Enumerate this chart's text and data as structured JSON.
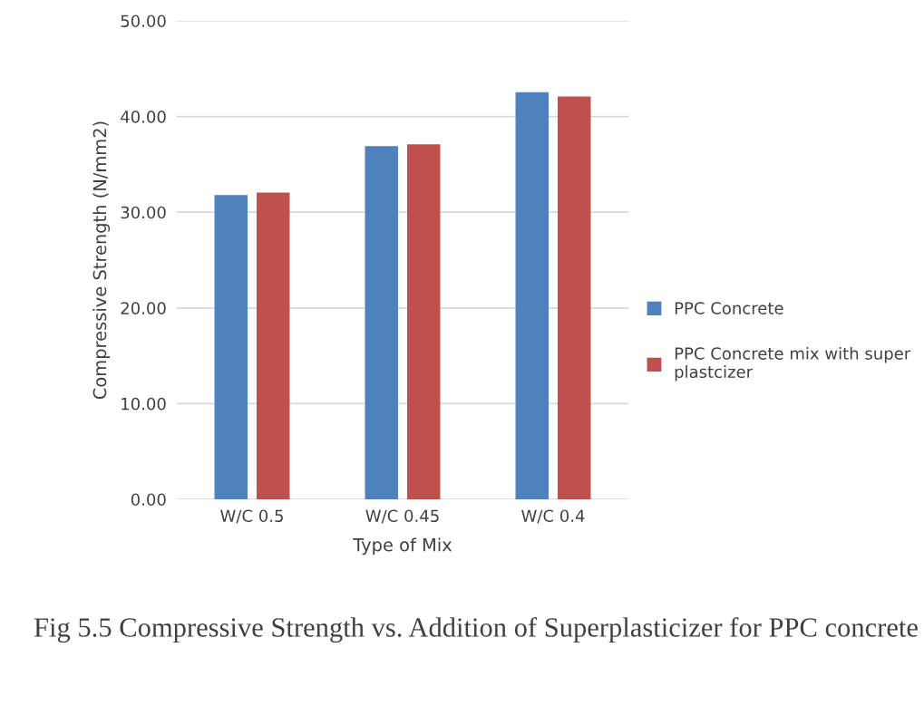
{
  "chart_data": {
    "type": "bar",
    "title": "Fig 5.5 Compressive Strength vs. Addition of Superplasticizer for PPC concrete",
    "xlabel": "Type of Mix",
    "ylabel": "Compressive Strength (N/mm2)",
    "categories": [
      "W/C 0.5",
      "W/C 0.45",
      "W/C 0.4"
    ],
    "series": [
      {
        "name": "PPC Concrete",
        "color": "#4f81bd",
        "values": [
          31.8,
          36.9,
          42.55
        ]
      },
      {
        "name": "PPC Concrete mix with super plastcizer",
        "color": "#c0504d",
        "values": [
          32.05,
          37.1,
          42.1
        ]
      }
    ],
    "ylim": [
      0,
      50
    ],
    "yticks": [
      {
        "value": 0,
        "label": "0.00"
      },
      {
        "value": 10,
        "label": "10.00"
      },
      {
        "value": 20,
        "label": "20.00"
      },
      {
        "value": 30,
        "label": "30.00"
      },
      {
        "value": 40,
        "label": "40.00"
      },
      {
        "value": 50,
        "label": "50.00"
      }
    ],
    "grid": "y",
    "legend": "right"
  }
}
